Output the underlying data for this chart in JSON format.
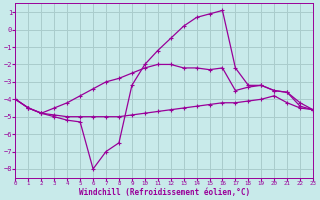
{
  "xlabel": "Windchill (Refroidissement éolien,°C)",
  "bg_color": "#c8eaea",
  "grid_color": "#aacccc",
  "line_color": "#990099",
  "xlim": [
    0,
    23
  ],
  "ylim": [
    -8.5,
    1.5
  ],
  "yticks": [
    1,
    0,
    -1,
    -2,
    -3,
    -4,
    -5,
    -6,
    -7,
    -8
  ],
  "xticks": [
    0,
    1,
    2,
    3,
    4,
    5,
    6,
    7,
    8,
    9,
    10,
    11,
    12,
    13,
    14,
    15,
    16,
    17,
    18,
    19,
    20,
    21,
    22,
    23
  ],
  "curve_flat_x": [
    0,
    1,
    2,
    3,
    4,
    5,
    6,
    7,
    8,
    9,
    10,
    11,
    12,
    13,
    14,
    15,
    16,
    17,
    18,
    19,
    20,
    21,
    22,
    23
  ],
  "curve_flat_y": [
    -4.0,
    -4.5,
    -4.8,
    -4.9,
    -5.0,
    -5.0,
    -5.0,
    -5.0,
    -5.0,
    -4.9,
    -4.8,
    -4.7,
    -4.6,
    -4.5,
    -4.4,
    -4.3,
    -4.2,
    -4.2,
    -4.1,
    -4.0,
    -3.8,
    -4.2,
    -4.5,
    -4.6
  ],
  "curve_mid_x": [
    0,
    1,
    2,
    3,
    4,
    5,
    6,
    7,
    8,
    9,
    10,
    11,
    12,
    13,
    14,
    15,
    16,
    17,
    18,
    19,
    20,
    21,
    22,
    23
  ],
  "curve_mid_y": [
    -4.0,
    -4.5,
    -4.8,
    -4.5,
    -4.2,
    -3.8,
    -3.4,
    -3.0,
    -2.8,
    -2.5,
    -2.2,
    -2.0,
    -2.0,
    -2.2,
    -2.2,
    -2.3,
    -2.2,
    -3.5,
    -3.3,
    -3.2,
    -3.5,
    -3.6,
    -4.4,
    -4.6
  ],
  "curve_steep_x": [
    0,
    1,
    2,
    3,
    4,
    5,
    6,
    7,
    8,
    9,
    10,
    11,
    12,
    13,
    14,
    15,
    16,
    17,
    18,
    19,
    20,
    21,
    22,
    23
  ],
  "curve_steep_y": [
    -4.0,
    -4.5,
    -4.8,
    -5.0,
    -5.2,
    -5.3,
    -8.0,
    -7.0,
    -6.5,
    -3.2,
    -2.0,
    -1.2,
    -0.5,
    0.2,
    0.7,
    0.9,
    1.1,
    -2.2,
    -3.2,
    -3.2,
    -3.5,
    -3.6,
    -4.2,
    -4.6
  ]
}
